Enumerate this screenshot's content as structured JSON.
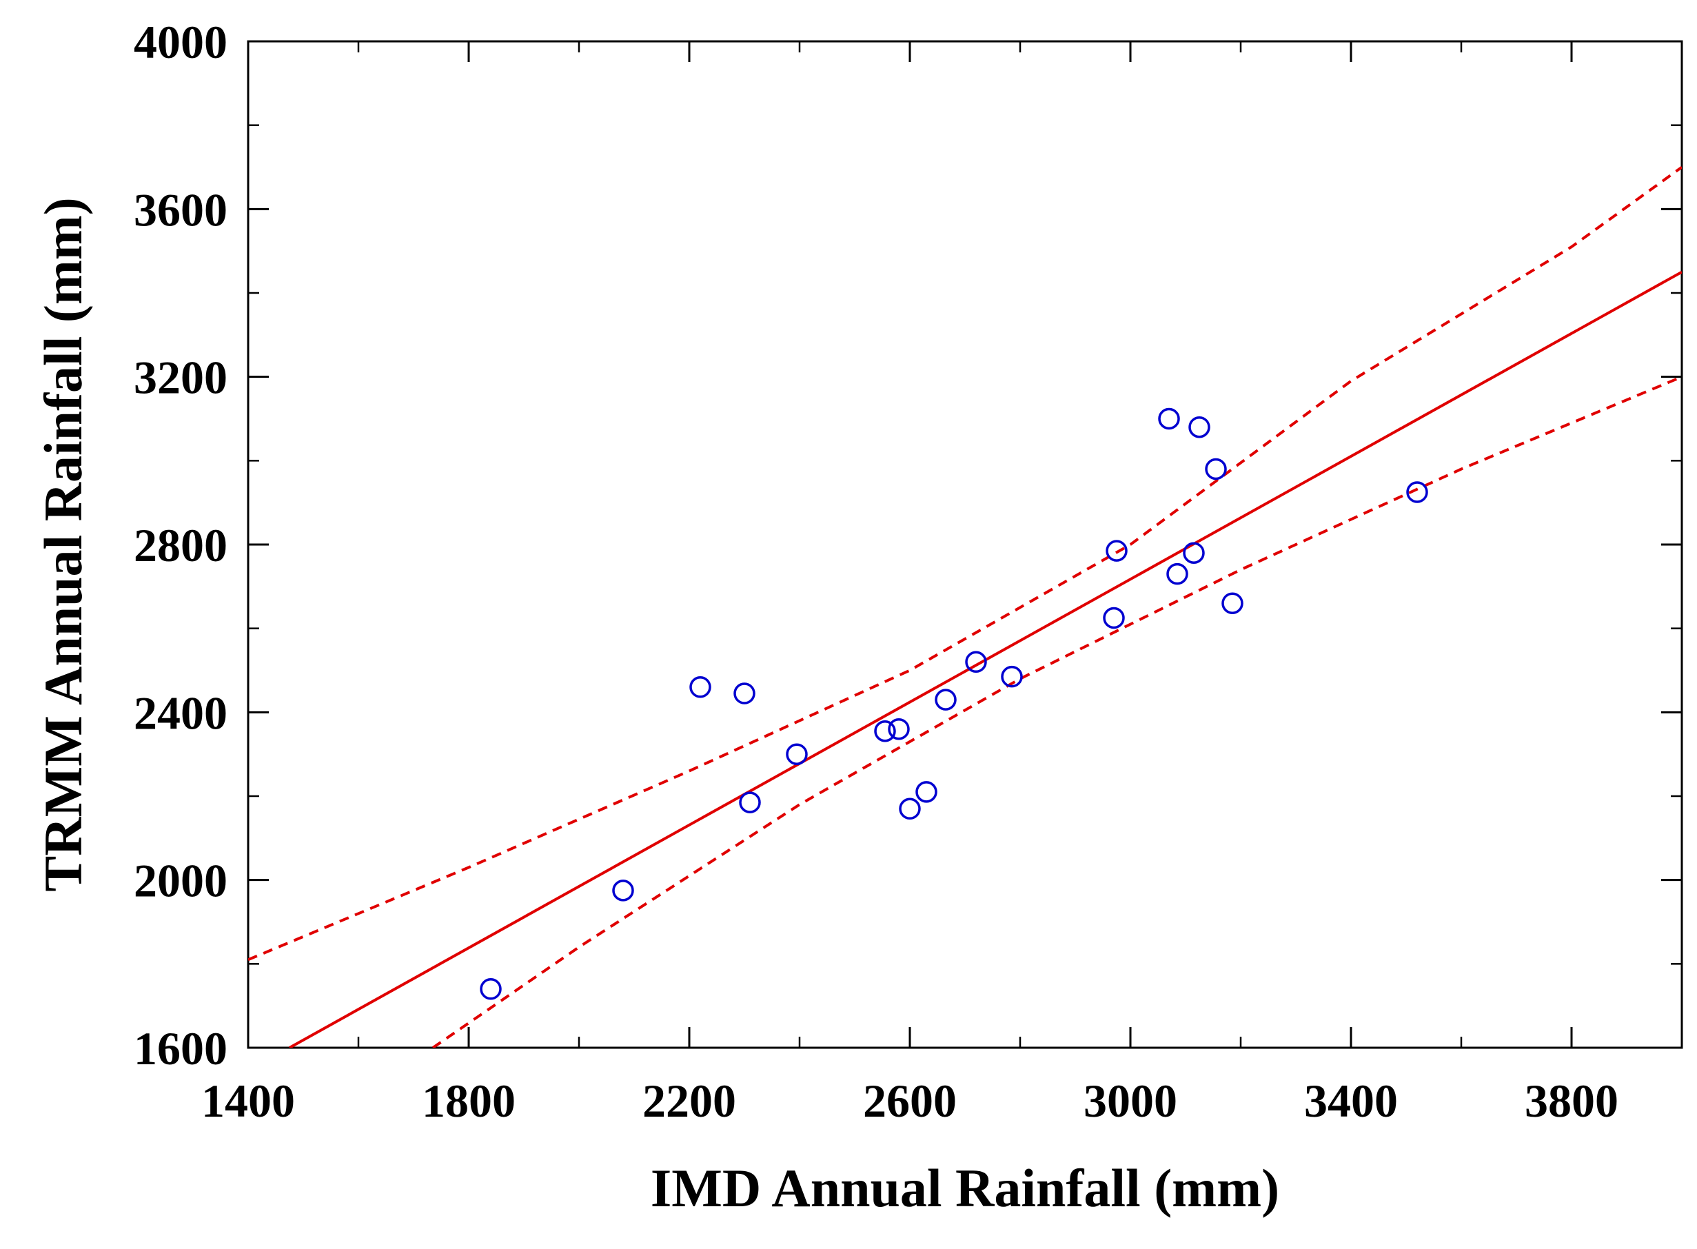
{
  "chart_data": {
    "type": "scatter",
    "title": "",
    "xlabel": "IMD Annual Rainfall (mm)",
    "ylabel": "TRMM Annual Rainfall (mm)",
    "xlim": [
      1400,
      4000
    ],
    "ylim": [
      1600,
      4000
    ],
    "x_ticks": [
      1400,
      1800,
      2200,
      2600,
      3000,
      3400,
      3800
    ],
    "y_ticks": [
      1600,
      2000,
      2400,
      2800,
      3200,
      3600,
      4000
    ],
    "x_minor_step": 200,
    "y_minor_step": 200,
    "grid": false,
    "legend": "none",
    "points": [
      {
        "x": 1840,
        "y": 1740
      },
      {
        "x": 2080,
        "y": 1975
      },
      {
        "x": 2220,
        "y": 2460
      },
      {
        "x": 2300,
        "y": 2445
      },
      {
        "x": 2310,
        "y": 2185
      },
      {
        "x": 2395,
        "y": 2300
      },
      {
        "x": 2555,
        "y": 2355
      },
      {
        "x": 2580,
        "y": 2360
      },
      {
        "x": 2600,
        "y": 2170
      },
      {
        "x": 2630,
        "y": 2210
      },
      {
        "x": 2665,
        "y": 2430
      },
      {
        "x": 2720,
        "y": 2520
      },
      {
        "x": 2785,
        "y": 2485
      },
      {
        "x": 2970,
        "y": 2625
      },
      {
        "x": 2975,
        "y": 2785
      },
      {
        "x": 3070,
        "y": 3100
      },
      {
        "x": 3085,
        "y": 2730
      },
      {
        "x": 3115,
        "y": 2780
      },
      {
        "x": 3125,
        "y": 3080
      },
      {
        "x": 3155,
        "y": 2980
      },
      {
        "x": 3185,
        "y": 2660
      },
      {
        "x": 3520,
        "y": 2925
      }
    ],
    "regression_line": [
      {
        "x": 1475,
        "y": 1600
      },
      {
        "x": 4000,
        "y": 3450
      }
    ],
    "confidence_upper": [
      {
        "x": 1400,
        "y": 1810
      },
      {
        "x": 1800,
        "y": 2030
      },
      {
        "x": 2200,
        "y": 2260
      },
      {
        "x": 2600,
        "y": 2500
      },
      {
        "x": 3000,
        "y": 2800
      },
      {
        "x": 3400,
        "y": 3190
      },
      {
        "x": 3800,
        "y": 3510
      },
      {
        "x": 4000,
        "y": 3700
      }
    ],
    "confidence_lower": [
      {
        "x": 1735,
        "y": 1600
      },
      {
        "x": 2000,
        "y": 1840
      },
      {
        "x": 2400,
        "y": 2180
      },
      {
        "x": 2800,
        "y": 2480
      },
      {
        "x": 3200,
        "y": 2740
      },
      {
        "x": 3600,
        "y": 2980
      },
      {
        "x": 4000,
        "y": 3200
      }
    ],
    "colors": {
      "points": "#0000d0",
      "fit": "#e00000",
      "axes": "#000000"
    }
  }
}
